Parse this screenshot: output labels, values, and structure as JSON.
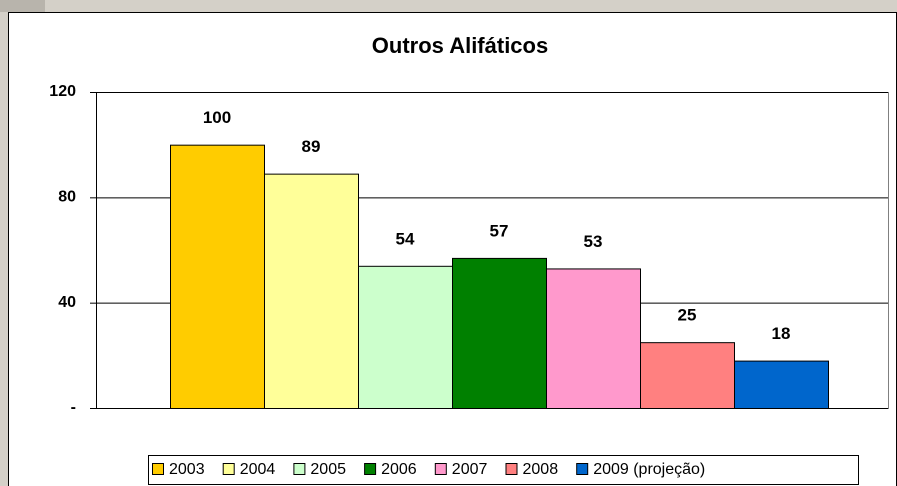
{
  "chart_data": {
    "type": "bar",
    "title": "Outros Alifáticos",
    "categories": [
      "2003",
      "2004",
      "2005",
      "2006",
      "2007",
      "2008",
      "2009 (projeção)"
    ],
    "values": [
      100,
      89,
      54,
      57,
      53,
      25,
      18
    ],
    "colors": [
      "#ffcc00",
      "#ffff99",
      "#ccffcc",
      "#008000",
      "#ff99cc",
      "#ff8080",
      "#0066cc"
    ],
    "ylim": [
      0,
      120
    ],
    "yticks": [
      {
        "value": 0,
        "label": "-"
      },
      40,
      80,
      120
    ],
    "grid": true,
    "legend": "bottom"
  }
}
